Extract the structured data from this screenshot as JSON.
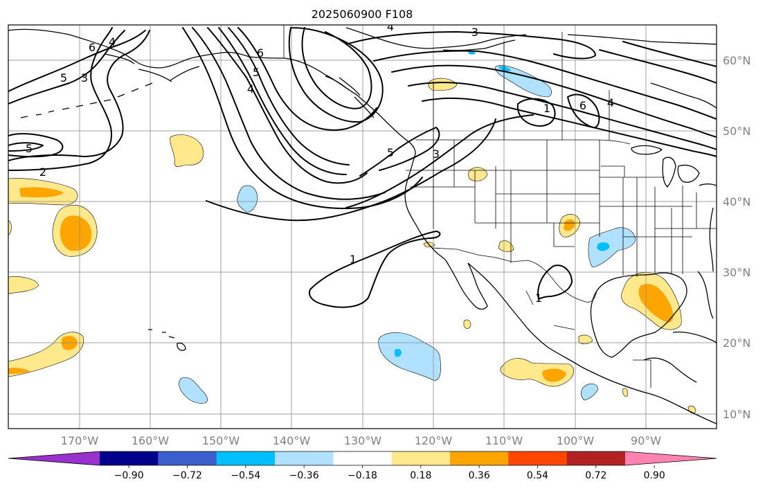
{
  "title": "2025060900 F108",
  "map": {
    "x_ticks": [
      "170°W",
      "160°W",
      "150°W",
      "140°W",
      "130°W",
      "120°W",
      "110°W",
      "100°W",
      "90°W"
    ],
    "y_ticks": [
      "60°N",
      "50°N",
      "40°N",
      "30°N",
      "20°N",
      "10°N"
    ],
    "grid": true
  },
  "contour_labels": [
    "6",
    "4",
    "5",
    "3",
    "5",
    "2",
    "6",
    "5",
    "4",
    "3",
    "4",
    "5",
    "3",
    "1",
    "6",
    "4",
    "1",
    "1"
  ],
  "colorbar": {
    "tick_labels": [
      "−0.90",
      "−0.72",
      "−0.54",
      "−0.36",
      "−0.18",
      "0.18",
      "0.36",
      "0.54",
      "0.72",
      "0.90"
    ],
    "bins": [
      "#9932cc",
      "#00008b",
      "#3a5fcd",
      "#00bfff",
      "#b0e2ff",
      "#ffffff",
      "#ffe98c",
      "#ffa500",
      "#ff4500",
      "#b22222",
      "#ff83b0"
    ],
    "orientation": "horizontal",
    "extend": "both"
  },
  "colors": {
    "light_yellow": "#ffe98c",
    "orange": "#ffa500",
    "light_blue": "#b0e2ff",
    "blue": "#00bfff"
  }
}
